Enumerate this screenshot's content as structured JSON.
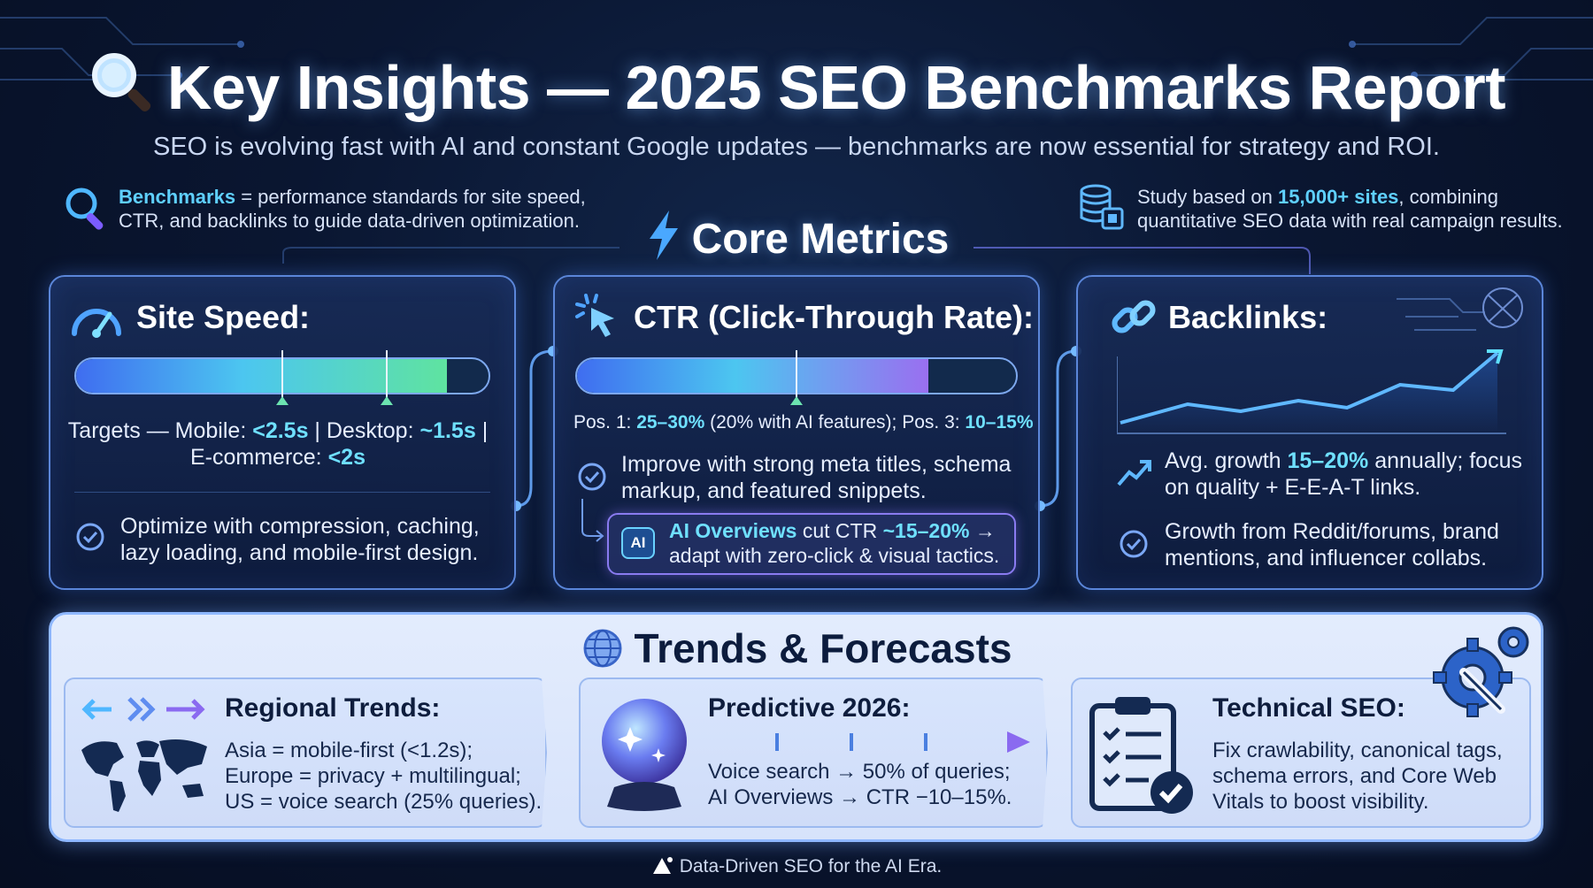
{
  "header": {
    "title": "Key Insights — 2025 SEO Benchmarks Report",
    "subtitle": "SEO is evolving fast with AI and constant Google updates — benchmarks are now essential for strategy and ROI."
  },
  "notes": {
    "left_bold": "Benchmarks",
    "left_text": " = performance standards for site speed, CTR, and backlinks to guide data-driven optimization.",
    "right_pre": "Study based on ",
    "right_bold": "15,000+ sites",
    "right_post": ", combining quantitative SEO data with real campaign results."
  },
  "core_metrics": {
    "title": "Core Metrics",
    "site_speed": {
      "title": "Site Speed:",
      "bar_fill": 0.9,
      "marker_positions": [
        0.5,
        0.75
      ],
      "targets_pre": "Targets — Mobile: ",
      "mobile": "<2.5s",
      "sep1": " | Desktop: ",
      "desktop": "~1.5s",
      "sep2": " |",
      "ecom_label": "E-commerce: ",
      "ecom": "<2s",
      "tip": "Optimize with compression, caching, lazy loading, and mobile-first design."
    },
    "ctr": {
      "title": "CTR (Click-Through Rate):",
      "bar_fill": 0.8,
      "marker_position": 0.5,
      "pos1_label": "Pos. 1: ",
      "pos1": "25–30%",
      "pos1_note": " (20% with AI features); Pos. 3: ",
      "pos3": "10–15%",
      "tip": "Improve with strong meta titles, schema markup, and featured snippets.",
      "ai_badge": "AI",
      "ai_bold": "AI Overviews",
      "ai_pre": " cut CTR ",
      "ai_value": "~15–20%",
      "ai_post": " → adapt with zero-click & visual tactics."
    },
    "backlinks": {
      "title": "Backlinks:",
      "growth_pre": "Avg. growth ",
      "growth": "15–20%",
      "growth_post": " annually; focus on quality + E-E-A-T links.",
      "tip": "Growth from Reddit/forums, brand mentions, and influencer collabs."
    }
  },
  "trends": {
    "title": "Trends & Forecasts",
    "regional": {
      "title": "Regional Trends:",
      "lines": [
        "Asia = mobile-first (<1.2s);",
        "Europe = privacy + multilingual;",
        "US = voice search (25% queries)."
      ]
    },
    "predictive": {
      "title": "Predictive 2026:",
      "lines": [
        "Voice search → 50% of queries;",
        "AI Overviews → CTR −10–15%."
      ]
    },
    "technical": {
      "title": "Technical SEO:",
      "lines": [
        "Fix crawlability, canonical tags,",
        "schema errors, and Core Web",
        "Vitals to boost visibility."
      ]
    }
  },
  "footer": {
    "text": "Data-Driven SEO for the AI Era."
  },
  "colors": {
    "accent": "#5fd0ff",
    "card_border": "#5b86d9",
    "panel_bg": "#e3ecfd"
  },
  "icons": [
    "magnifier-icon",
    "database-chip-icon",
    "lightning-icon",
    "speedometer-icon",
    "cursor-click-icon",
    "link-icon",
    "globe-icon",
    "crystal-ball-icon",
    "clipboard-checklist-icon",
    "gear-wrench-icon",
    "world-map-icon"
  ]
}
